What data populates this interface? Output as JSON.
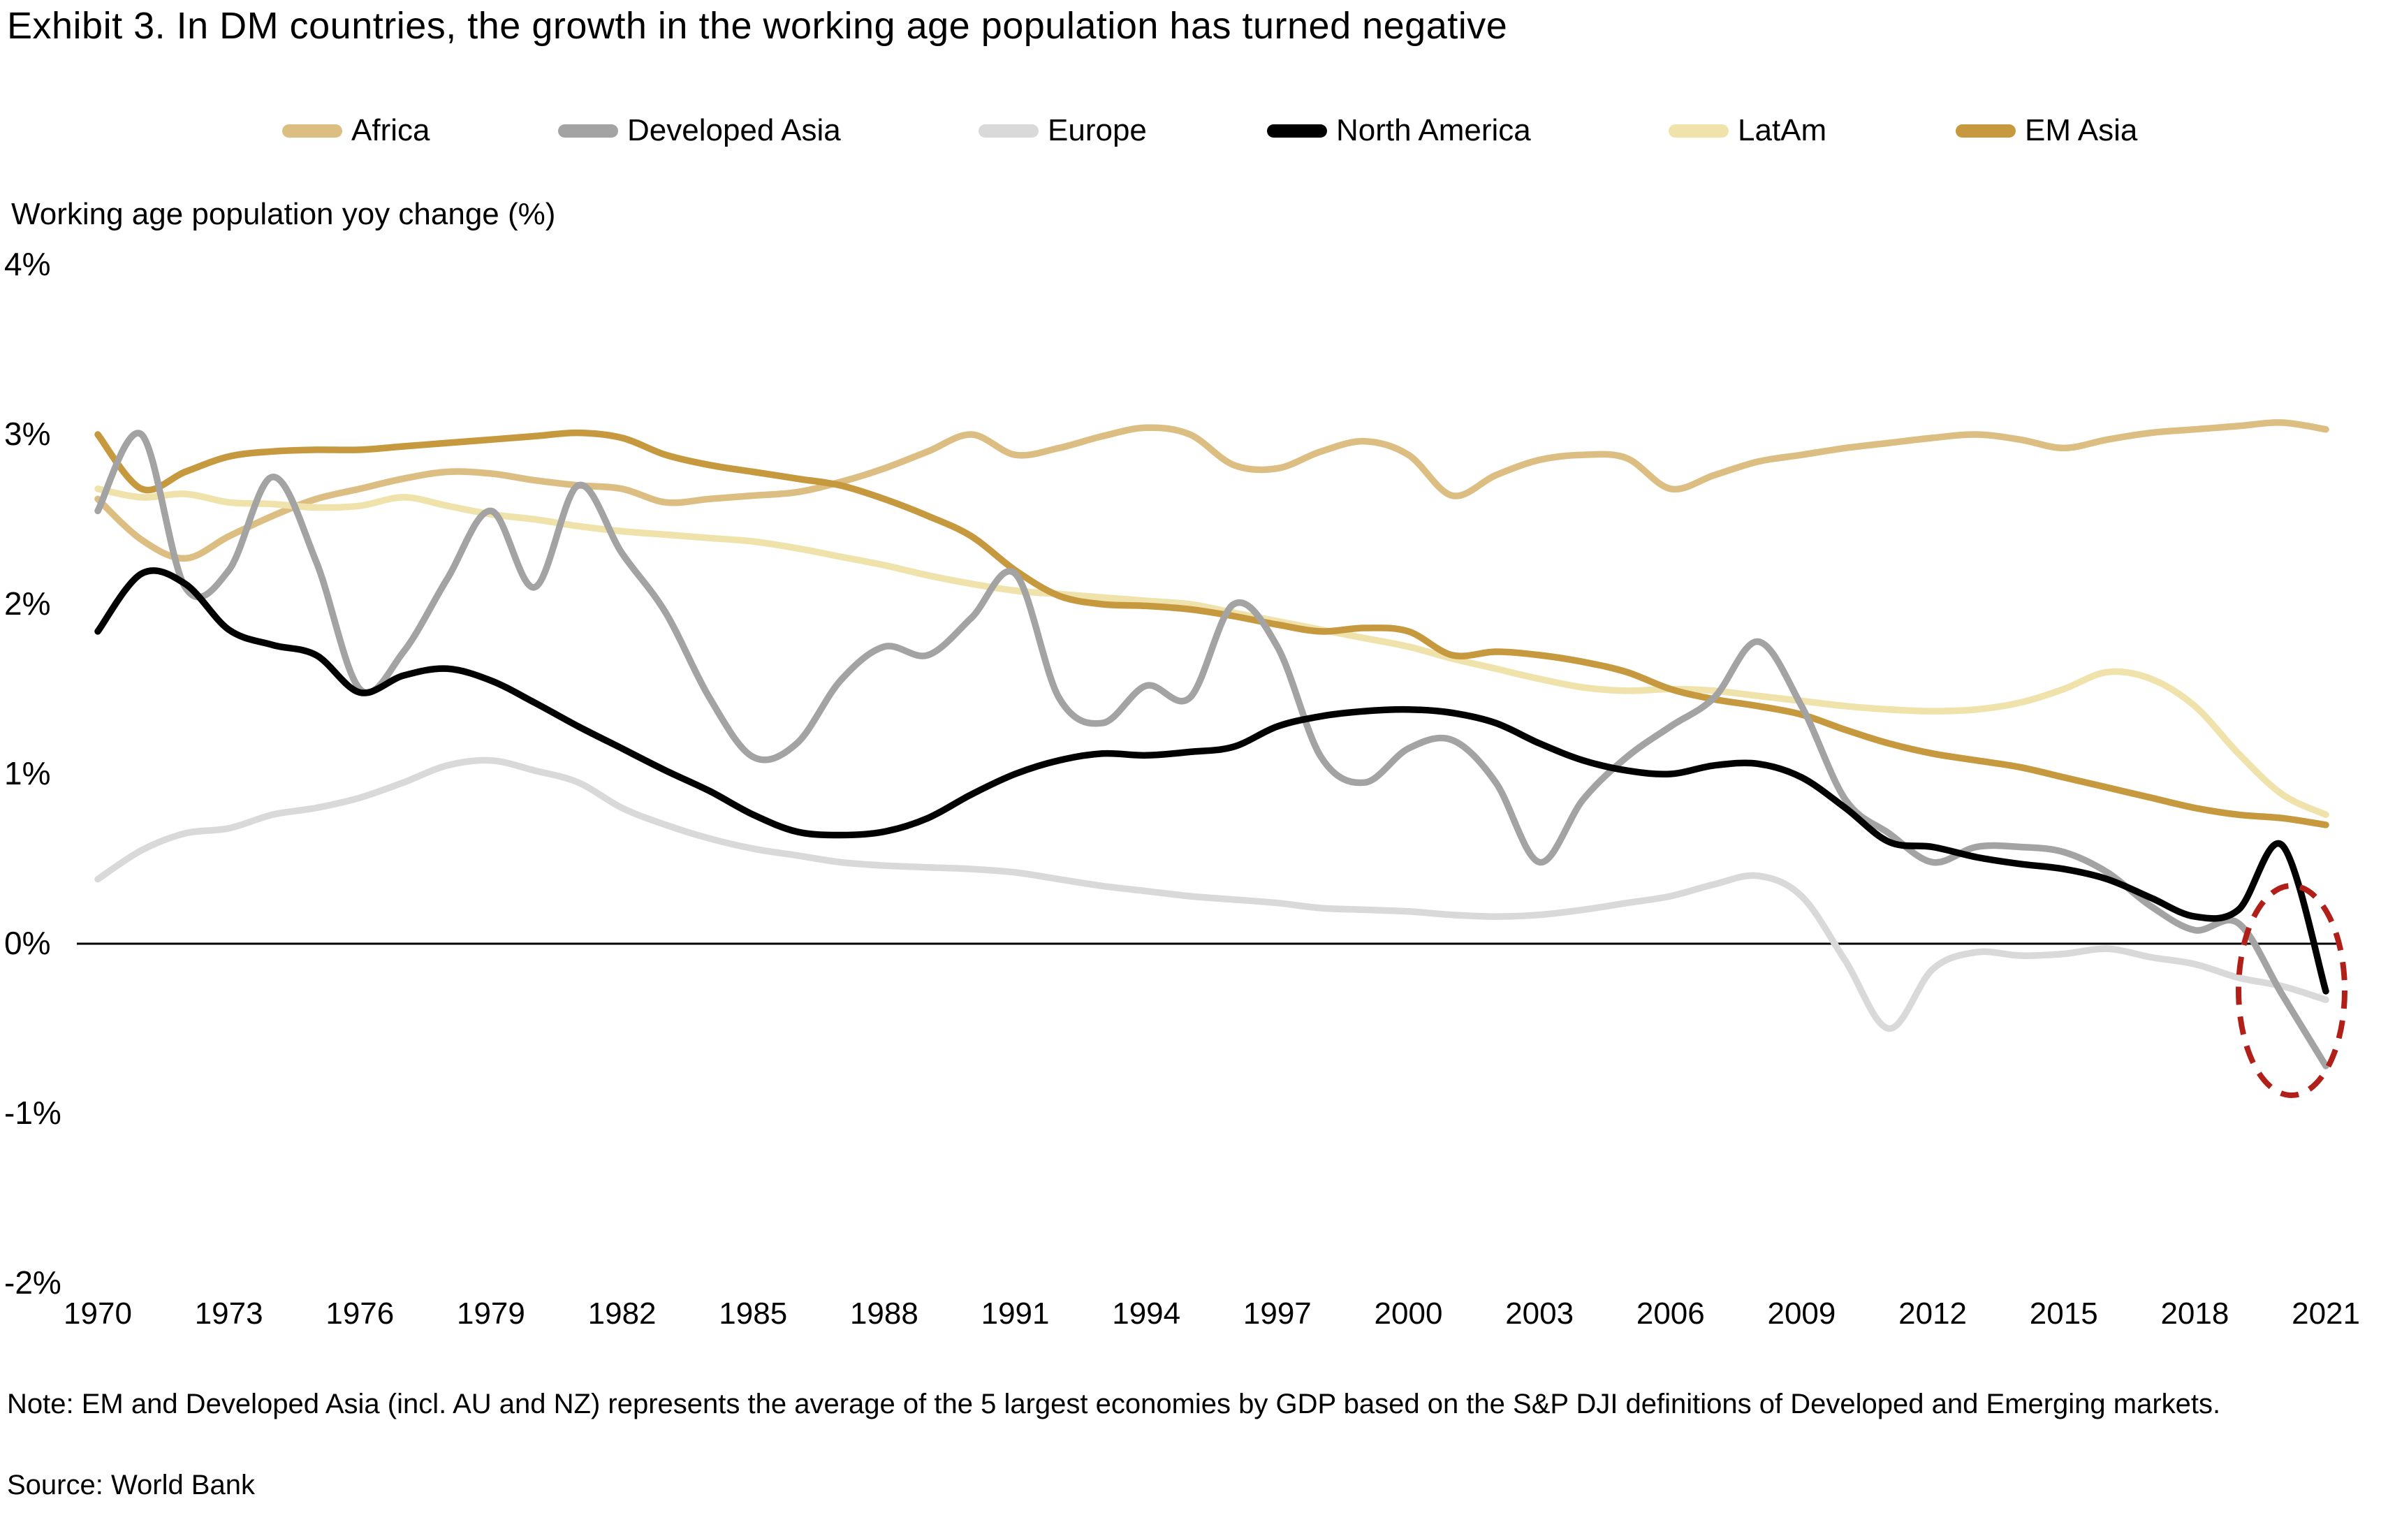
{
  "title": "Exhibit 3. In DM countries, the growth in the working age population has turned negative",
  "subtitle": "Working age population yoy change (%)",
  "note": "Note: EM and Developed Asia (incl. AU and NZ) represents the average of the 5 largest economies by GDP based on the S&P DJI definitions of Developed and Emerging markets.",
  "source": "Source: World Bank",
  "annotation": {
    "shape": "dashed-ellipse",
    "color": "#b02018",
    "highlights": "2020-2021 negative values"
  },
  "chart_data": {
    "type": "line",
    "title": "Exhibit 3. In DM countries, the growth in the working age population has turned negative",
    "ylabel": "Working age population yoy change (%)",
    "xlabel": "",
    "grid": false,
    "legend_position": "top",
    "ylim": [
      -2.3,
      4.2
    ],
    "xlim": [
      1969.5,
      2021.8
    ],
    "x_ticks": [
      1970,
      1973,
      1976,
      1979,
      1982,
      1985,
      1988,
      1991,
      1994,
      1997,
      2000,
      2003,
      2006,
      2009,
      2012,
      2015,
      2018,
      2021
    ],
    "y_ticks": [
      {
        "label": "4%",
        "value": 4
      },
      {
        "label": "3%",
        "value": 3
      },
      {
        "label": "2%",
        "value": 2
      },
      {
        "label": "1%",
        "value": 1
      },
      {
        "label": "0%",
        "value": 0
      },
      {
        "label": "-1%",
        "value": -1
      },
      {
        "label": "-2%",
        "value": -2
      }
    ],
    "x": [
      1970,
      1971,
      1972,
      1973,
      1974,
      1975,
      1976,
      1977,
      1978,
      1979,
      1980,
      1981,
      1982,
      1983,
      1984,
      1985,
      1986,
      1987,
      1988,
      1989,
      1990,
      1991,
      1992,
      1993,
      1994,
      1995,
      1996,
      1997,
      1998,
      1999,
      2000,
      2001,
      2002,
      2003,
      2004,
      2005,
      2006,
      2007,
      2008,
      2009,
      2010,
      2011,
      2012,
      2013,
      2014,
      2015,
      2016,
      2017,
      2018,
      2019,
      2020,
      2021
    ],
    "series": [
      {
        "name": "Africa",
        "color": "#dcbe82",
        "values": [
          2.62,
          2.38,
          2.27,
          2.4,
          2.52,
          2.62,
          2.68,
          2.74,
          2.78,
          2.77,
          2.73,
          2.7,
          2.68,
          2.6,
          2.62,
          2.64,
          2.66,
          2.72,
          2.8,
          2.9,
          3.0,
          2.88,
          2.92,
          2.99,
          3.04,
          3.0,
          2.82,
          2.8,
          2.9,
          2.96,
          2.88,
          2.64,
          2.76,
          2.85,
          2.88,
          2.86,
          2.68,
          2.76,
          2.84,
          2.88,
          2.92,
          2.95,
          2.98,
          3.0,
          2.97,
          2.92,
          2.97,
          3.01,
          3.03,
          3.05,
          3.07,
          3.03
        ]
      },
      {
        "name": "Developed Asia",
        "color": "#a3a3a3",
        "values": [
          2.55,
          3.0,
          2.1,
          2.2,
          2.75,
          2.25,
          1.5,
          1.72,
          2.15,
          2.55,
          2.1,
          2.7,
          2.3,
          1.95,
          1.45,
          1.1,
          1.18,
          1.55,
          1.75,
          1.7,
          1.92,
          2.18,
          1.45,
          1.3,
          1.52,
          1.45,
          2.0,
          1.75,
          1.1,
          0.95,
          1.15,
          1.2,
          0.95,
          0.48,
          0.85,
          1.1,
          1.28,
          1.45,
          1.78,
          1.4,
          0.85,
          0.65,
          0.48,
          0.57,
          0.57,
          0.54,
          0.42,
          0.22,
          0.08,
          0.12,
          -0.3,
          -0.72
        ]
      },
      {
        "name": "Europe",
        "color": "#d9d9d9",
        "values": [
          0.38,
          0.55,
          0.65,
          0.68,
          0.76,
          0.8,
          0.86,
          0.95,
          1.05,
          1.08,
          1.02,
          0.95,
          0.8,
          0.7,
          0.62,
          0.56,
          0.52,
          0.48,
          0.46,
          0.45,
          0.44,
          0.42,
          0.38,
          0.34,
          0.31,
          0.28,
          0.26,
          0.24,
          0.21,
          0.2,
          0.19,
          0.17,
          0.16,
          0.17,
          0.2,
          0.24,
          0.28,
          0.35,
          0.4,
          0.28,
          -0.1,
          -0.5,
          -0.15,
          -0.05,
          -0.07,
          -0.06,
          -0.03,
          -0.08,
          -0.12,
          -0.2,
          -0.25,
          -0.33
        ]
      },
      {
        "name": "North America",
        "color": "#000000",
        "values": [
          1.84,
          2.18,
          2.12,
          1.85,
          1.76,
          1.7,
          1.48,
          1.58,
          1.62,
          1.55,
          1.42,
          1.28,
          1.15,
          1.02,
          0.9,
          0.76,
          0.66,
          0.64,
          0.66,
          0.74,
          0.88,
          1.0,
          1.08,
          1.12,
          1.11,
          1.13,
          1.16,
          1.28,
          1.34,
          1.37,
          1.38,
          1.36,
          1.3,
          1.18,
          1.08,
          1.02,
          1.0,
          1.05,
          1.06,
          0.98,
          0.8,
          0.6,
          0.57,
          0.51,
          0.47,
          0.44,
          0.38,
          0.27,
          0.16,
          0.2,
          0.58,
          -0.28
        ]
      },
      {
        "name": "LatAm",
        "color": "#efe2ab",
        "values": [
          2.68,
          2.63,
          2.65,
          2.6,
          2.59,
          2.57,
          2.58,
          2.63,
          2.58,
          2.53,
          2.5,
          2.46,
          2.43,
          2.41,
          2.39,
          2.37,
          2.33,
          2.28,
          2.23,
          2.17,
          2.12,
          2.08,
          2.06,
          2.04,
          2.02,
          2.0,
          1.95,
          1.9,
          1.85,
          1.8,
          1.75,
          1.68,
          1.62,
          1.56,
          1.51,
          1.49,
          1.5,
          1.49,
          1.46,
          1.43,
          1.4,
          1.38,
          1.37,
          1.38,
          1.42,
          1.5,
          1.6,
          1.56,
          1.4,
          1.12,
          0.88,
          0.76
        ]
      },
      {
        "name": "EM Asia",
        "color": "#c6993f",
        "values": [
          3.0,
          2.68,
          2.78,
          2.87,
          2.9,
          2.91,
          2.91,
          2.93,
          2.95,
          2.97,
          2.99,
          3.01,
          2.98,
          2.88,
          2.82,
          2.78,
          2.74,
          2.7,
          2.62,
          2.52,
          2.4,
          2.2,
          2.05,
          2.0,
          1.99,
          1.97,
          1.93,
          1.88,
          1.84,
          1.86,
          1.84,
          1.7,
          1.72,
          1.7,
          1.66,
          1.6,
          1.5,
          1.44,
          1.4,
          1.35,
          1.26,
          1.18,
          1.12,
          1.08,
          1.04,
          0.98,
          0.92,
          0.86,
          0.8,
          0.76,
          0.74,
          0.7
        ]
      }
    ],
    "draw_order": [
      "Africa",
      "LatAm",
      "EM Asia",
      "Europe",
      "Developed Asia",
      "North America"
    ],
    "zero_line": true
  }
}
